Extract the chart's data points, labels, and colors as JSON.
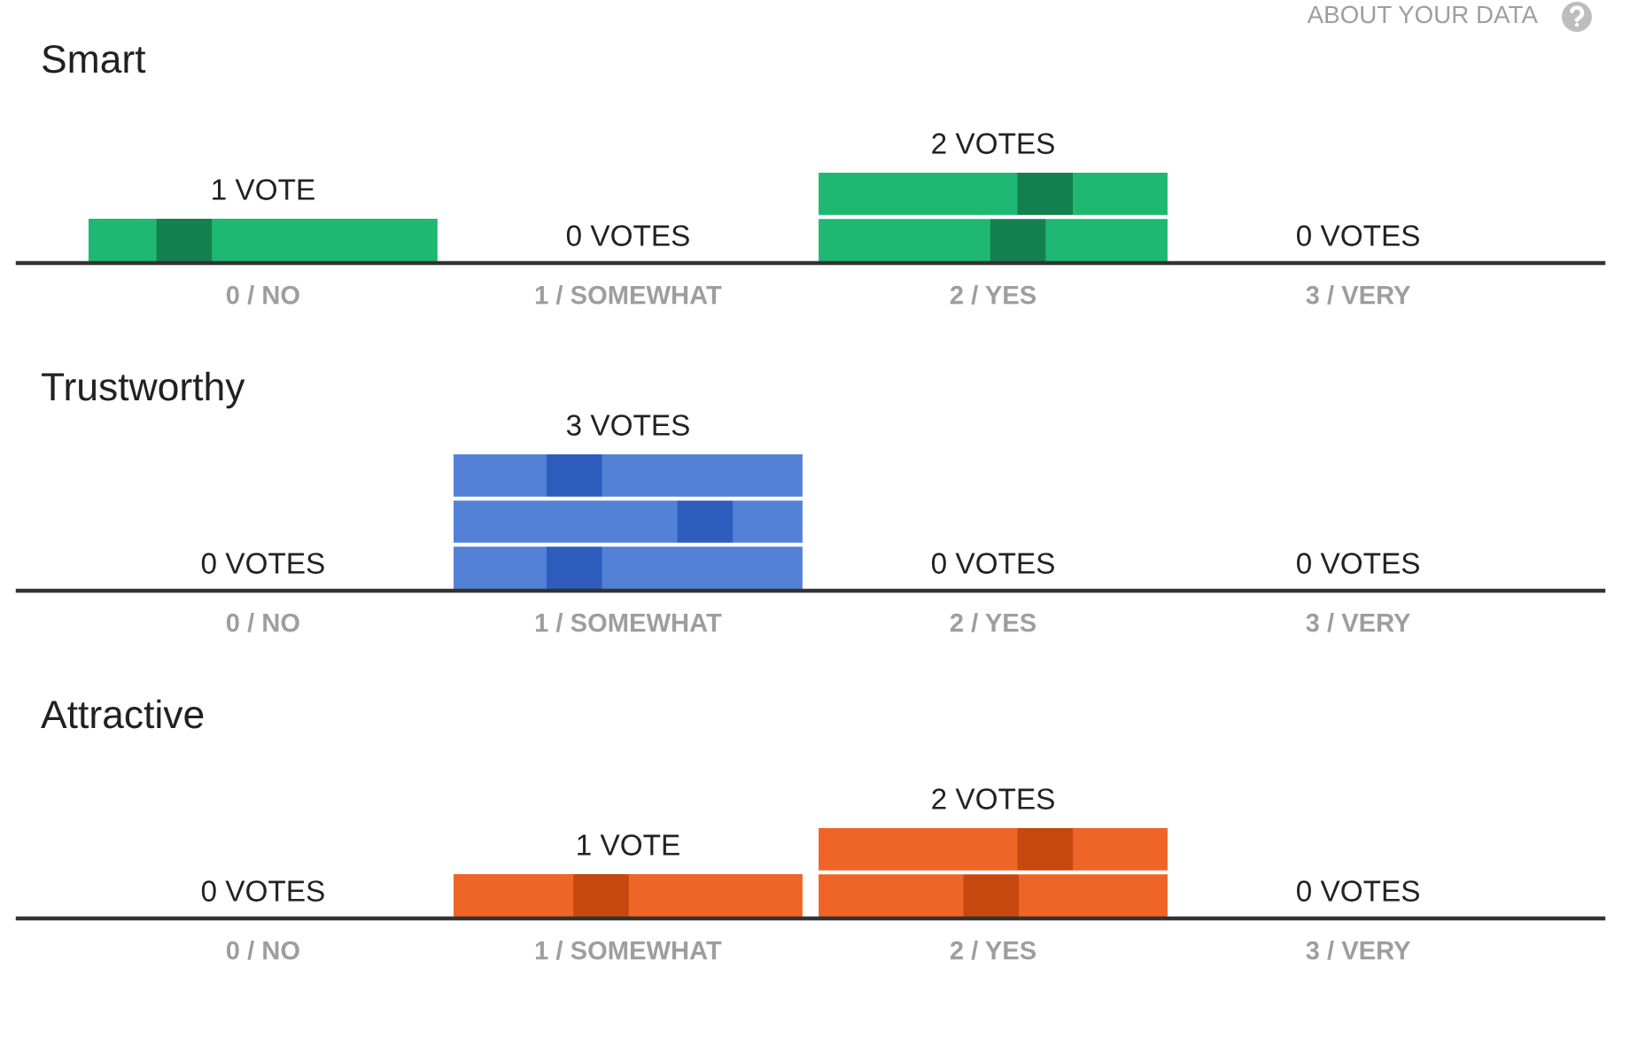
{
  "chart_data": [
    {
      "type": "bar",
      "title": "Smart",
      "annotations": [
        "ABOUT YOUR DATA"
      ],
      "categories": [
        "0 / NO",
        "1 / SOMEWHAT",
        "2 / YES",
        "3 / VERY"
      ],
      "tick_labels": "x",
      "values": [
        1,
        0,
        2,
        0
      ],
      "color": "#1eb872",
      "value_labels": [
        "1 VOTE",
        "0 VOTES",
        "2 VOTES",
        "0 VOTES"
      ]
    },
    {
      "type": "bar",
      "title": "Trustworthy",
      "categories": [
        "0 / NO",
        "1 / SOMEWHAT",
        "2 / YES",
        "3 / VERY"
      ],
      "tick_labels": "x",
      "values": [
        0,
        3,
        0,
        0
      ],
      "color": "#5381d6",
      "value_labels": [
        "0 VOTES",
        "3 VOTES",
        "0 VOTES",
        "0 VOTES"
      ]
    },
    {
      "type": "bar",
      "title": "Attractive",
      "categories": [
        "0 / NO",
        "1 / SOMEWHAT",
        "2 / YES",
        "3 / VERY"
      ],
      "tick_labels": "x",
      "values": [
        0,
        1,
        2,
        0
      ],
      "color": "#ef6427",
      "value_labels": [
        "0 VOTES",
        "1 VOTE",
        "2 VOTES",
        "0 VOTES"
      ]
    }
  ]
}
